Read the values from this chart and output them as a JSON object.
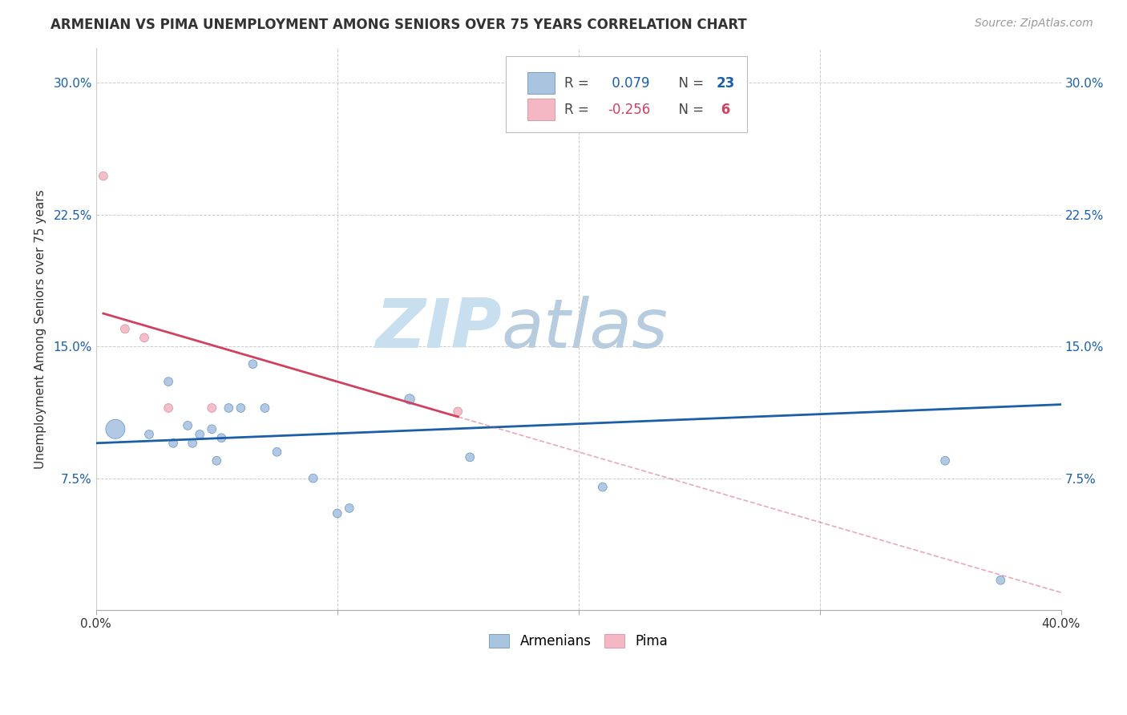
{
  "title": "ARMENIAN VS PIMA UNEMPLOYMENT AMONG SENIORS OVER 75 YEARS CORRELATION CHART",
  "source": "Source: ZipAtlas.com",
  "ylabel": "Unemployment Among Seniors over 75 years",
  "xlim": [
    0,
    0.4
  ],
  "ylim": [
    0,
    0.32
  ],
  "xticks": [
    0.0,
    0.1,
    0.2,
    0.3,
    0.4
  ],
  "xtick_labels": [
    "0.0%",
    "",
    "",
    "",
    "40.0%"
  ],
  "yticks": [
    0.0,
    0.075,
    0.15,
    0.225,
    0.3
  ],
  "ytick_labels_left": [
    "",
    "7.5%",
    "15.0%",
    "22.5%",
    "30.0%"
  ],
  "ytick_labels_right": [
    "",
    "7.5%",
    "15.0%",
    "22.5%",
    "30.0%"
  ],
  "armenian_x": [
    0.008,
    0.022,
    0.03,
    0.032,
    0.038,
    0.04,
    0.043,
    0.048,
    0.05,
    0.052,
    0.055,
    0.06,
    0.065,
    0.07,
    0.075,
    0.09,
    0.1,
    0.105,
    0.13,
    0.155,
    0.21,
    0.352,
    0.375
  ],
  "armenian_y": [
    0.103,
    0.1,
    0.13,
    0.095,
    0.105,
    0.095,
    0.1,
    0.103,
    0.085,
    0.098,
    0.115,
    0.115,
    0.14,
    0.115,
    0.09,
    0.075,
    0.055,
    0.058,
    0.12,
    0.087,
    0.07,
    0.085,
    0.017
  ],
  "armenian_sizes": [
    300,
    60,
    60,
    60,
    60,
    60,
    60,
    60,
    60,
    60,
    60,
    60,
    60,
    60,
    60,
    60,
    60,
    60,
    80,
    60,
    60,
    60,
    60
  ],
  "pima_x": [
    0.003,
    0.012,
    0.02,
    0.03,
    0.048,
    0.15
  ],
  "pima_y": [
    0.247,
    0.16,
    0.155,
    0.115,
    0.115,
    0.113
  ],
  "pima_sizes": [
    60,
    60,
    60,
    60,
    60,
    60
  ],
  "armenian_R": 0.079,
  "armenian_N": 23,
  "pima_R": -0.256,
  "pima_N": 6,
  "armenian_color": "#aac4e0",
  "armenian_edge_color": "#5588bb",
  "armenian_line_color": "#1a5fa8",
  "pima_color": "#f4b8c4",
  "pima_edge_color": "#d08090",
  "pima_line_color": "#d04060",
  "watermark_zip": "ZIP",
  "watermark_atlas": "atlas",
  "watermark_color_zip": "#c8dff0",
  "watermark_color_atlas": "#c0d8e8",
  "background_color": "#ffffff",
  "grid_color": "#cccccc",
  "blue_line_intercept": 0.095,
  "blue_line_slope": 0.055,
  "pink_line_intercept": 0.17,
  "pink_line_slope": -0.4
}
